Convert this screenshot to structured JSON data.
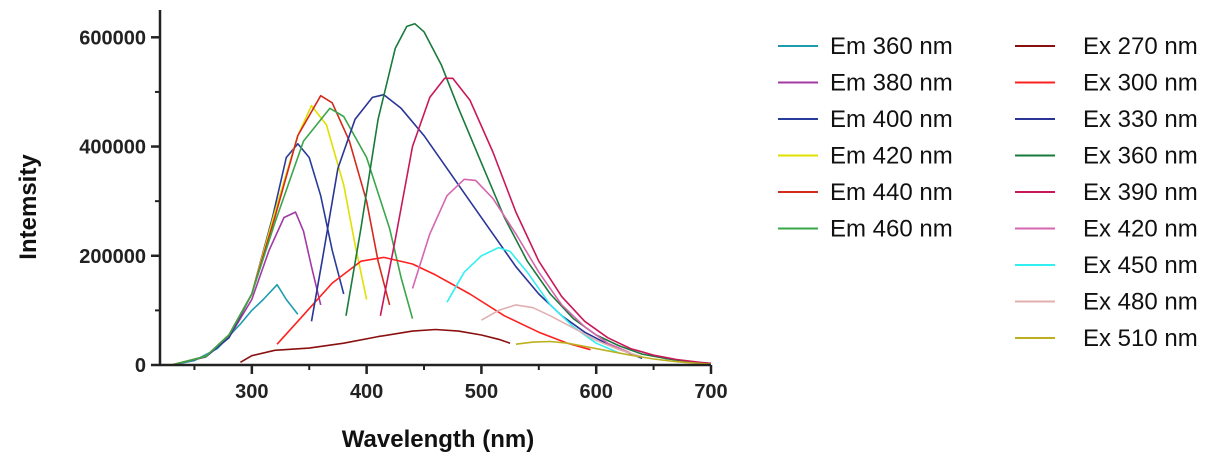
{
  "chart_data": {
    "type": "line",
    "xlabel": "Wavelength (nm)",
    "ylabel": "Intemsity",
    "xlim": [
      220,
      700
    ],
    "ylim": [
      0,
      650000
    ],
    "xticks": [
      300,
      400,
      500,
      600,
      700
    ],
    "yticks": [
      0,
      200000,
      400000,
      600000
    ],
    "xtick_labels": [
      "300",
      "400",
      "500",
      "600",
      "700"
    ],
    "ytick_labels": [
      "0",
      "200000",
      "400000",
      "600000"
    ],
    "grid": false,
    "legend_position": "right",
    "series": [
      {
        "name": "Em 360 nm",
        "color": "#1f9bb0",
        "x": [
          230,
          250,
          270,
          290,
          300,
          310,
          322,
          330,
          340
        ],
        "y": [
          0,
          8000,
          30000,
          75000,
          100000,
          120000,
          147000,
          120000,
          93000
        ]
      },
      {
        "name": "Em 380 nm",
        "color": "#a23aa6",
        "x": [
          230,
          260,
          280,
          300,
          315,
          328,
          338,
          345,
          352,
          360
        ],
        "y": [
          0,
          15000,
          50000,
          120000,
          210000,
          270000,
          280000,
          245000,
          180000,
          110000
        ]
      },
      {
        "name": "Em 400 nm",
        "color": "#283c9c",
        "x": [
          230,
          260,
          280,
          300,
          318,
          330,
          340,
          350,
          360,
          370,
          380
        ],
        "y": [
          0,
          15000,
          50000,
          130000,
          270000,
          380000,
          405000,
          380000,
          310000,
          210000,
          130000
        ]
      },
      {
        "name": "Em 420 nm",
        "color": "#e0e000",
        "x": [
          230,
          260,
          280,
          300,
          320,
          340,
          352,
          365,
          380,
          390,
          400
        ],
        "y": [
          0,
          16000,
          55000,
          130000,
          280000,
          420000,
          475000,
          440000,
          330000,
          220000,
          120000
        ]
      },
      {
        "name": "Em 440 nm",
        "color": "#d42a1e",
        "x": [
          230,
          260,
          280,
          300,
          320,
          340,
          360,
          370,
          385,
          400,
          410,
          420
        ],
        "y": [
          0,
          16000,
          55000,
          130000,
          270000,
          420000,
          493000,
          480000,
          410000,
          300000,
          190000,
          110000
        ]
      },
      {
        "name": "Em 460 nm",
        "color": "#3aa64a",
        "x": [
          230,
          260,
          280,
          300,
          320,
          345,
          368,
          380,
          400,
          420,
          430,
          440
        ],
        "y": [
          0,
          16000,
          55000,
          130000,
          260000,
          410000,
          470000,
          455000,
          380000,
          250000,
          160000,
          85000
        ]
      },
      {
        "name": "Ex 270 nm",
        "color": "#8a1010",
        "x": [
          290,
          300,
          320,
          350,
          380,
          410,
          440,
          460,
          480,
          500,
          515,
          525
        ],
        "y": [
          5000,
          17000,
          27000,
          31000,
          40000,
          52000,
          62000,
          65000,
          62000,
          55000,
          47000,
          40000
        ]
      },
      {
        "name": "Ex 300 nm",
        "color": "#ff2020",
        "x": [
          322,
          340,
          370,
          395,
          415,
          440,
          460,
          490,
          520,
          550,
          575,
          595
        ],
        "y": [
          38000,
          80000,
          150000,
          190000,
          197000,
          185000,
          165000,
          130000,
          90000,
          60000,
          40000,
          28000
        ]
      },
      {
        "name": "Ex 330 nm",
        "color": "#2a3596",
        "x": [
          352,
          362,
          375,
          390,
          405,
          415,
          430,
          450,
          470,
          490,
          510,
          530,
          550,
          570,
          590,
          610,
          625,
          640
        ],
        "y": [
          80000,
          200000,
          360000,
          450000,
          490000,
          495000,
          470000,
          420000,
          360000,
          300000,
          240000,
          180000,
          130000,
          90000,
          60000,
          38000,
          25000,
          12000
        ]
      },
      {
        "name": "Ex 360 nm",
        "color": "#1a7a3c",
        "x": [
          382,
          395,
          410,
          425,
          435,
          442,
          450,
          465,
          480,
          500,
          520,
          540,
          560,
          580,
          600,
          620,
          640,
          660,
          680,
          700
        ],
        "y": [
          90000,
          250000,
          450000,
          580000,
          620000,
          625000,
          610000,
          550000,
          470000,
          370000,
          270000,
          190000,
          130000,
          85000,
          55000,
          35000,
          20000,
          12000,
          6000,
          3000
        ]
      },
      {
        "name": "Ex 390 nm",
        "color": "#c9185a",
        "x": [
          412,
          425,
          440,
          455,
          468,
          475,
          490,
          510,
          530,
          550,
          570,
          590,
          610,
          630,
          650,
          670,
          690,
          700
        ],
        "y": [
          90000,
          230000,
          400000,
          490000,
          525000,
          525000,
          485000,
          390000,
          280000,
          190000,
          125000,
          80000,
          50000,
          30000,
          18000,
          10000,
          5000,
          3000
        ]
      },
      {
        "name": "Ex 420 nm",
        "color": "#d666b0",
        "x": [
          440,
          455,
          470,
          485,
          495,
          510,
          530,
          550,
          570,
          590,
          610,
          630
        ],
        "y": [
          140000,
          240000,
          310000,
          340000,
          338000,
          305000,
          240000,
          170000,
          110000,
          70000,
          40000,
          22000
        ]
      },
      {
        "name": "Ex 450 nm",
        "color": "#33f0f0",
        "x": [
          470,
          485,
          500,
          515,
          525,
          540,
          560,
          580,
          600,
          620
        ],
        "y": [
          115000,
          170000,
          200000,
          215000,
          208000,
          170000,
          110000,
          70000,
          40000,
          22000
        ]
      },
      {
        "name": "Ex 480 nm",
        "color": "#e0b0b0",
        "x": [
          500,
          515,
          530,
          545,
          560,
          580,
          600,
          620,
          640
        ],
        "y": [
          82000,
          100000,
          110000,
          105000,
          90000,
          68000,
          45000,
          28000,
          15000
        ]
      },
      {
        "name": "Ex 510 nm",
        "color": "#bcb020",
        "x": [
          530,
          545,
          560,
          575,
          590,
          610,
          630,
          650,
          670,
          690,
          700
        ],
        "y": [
          38000,
          42000,
          43000,
          40000,
          34000,
          26000,
          18000,
          11000,
          6000,
          3000,
          1500
        ]
      }
    ]
  }
}
